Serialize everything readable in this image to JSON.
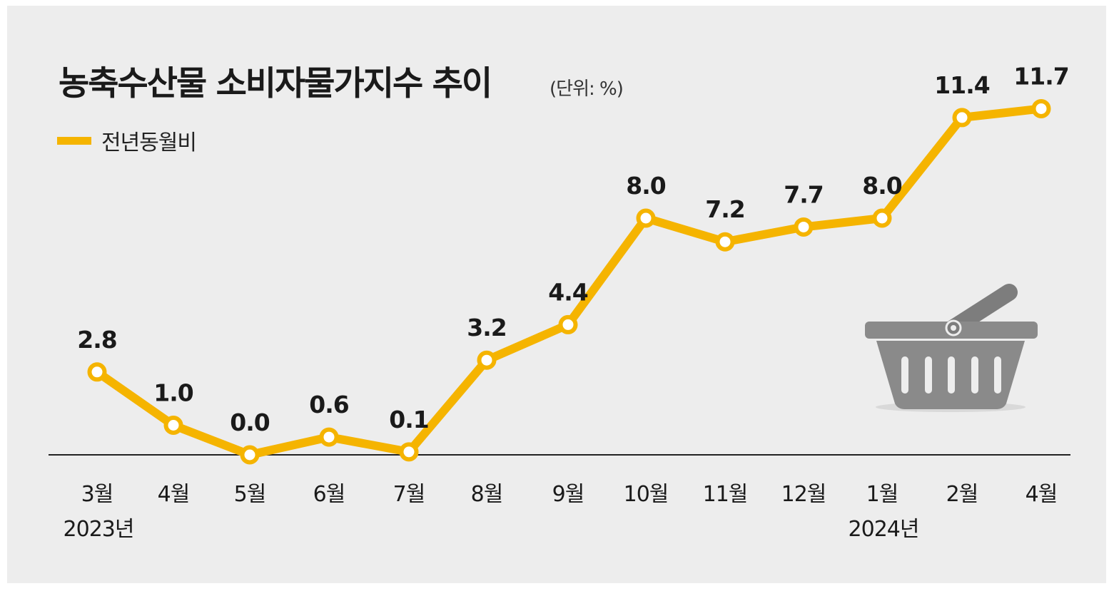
{
  "title": "농축수산물 소비자물가지수 추이",
  "unit": "(단위: %)",
  "colors": {
    "line": "#f5b400",
    "background": "#ededed",
    "basket": "#8a8a8a"
  },
  "icons": [
    "shopping-basket-icon"
  ],
  "chart_data": {
    "type": "line",
    "title": "농축수산물 소비자물가지수 추이",
    "unit": "(단위: %)",
    "categories": [
      "3월",
      "4월",
      "5월",
      "6월",
      "7월",
      "8월",
      "9월",
      "10월",
      "11월",
      "12월",
      "1월",
      "2월",
      "4월"
    ],
    "year_labels": [
      {
        "category_index": 0,
        "label": "2023년"
      },
      {
        "category_index": 10,
        "label": "2024년"
      }
    ],
    "series": [
      {
        "name": "전년동월비",
        "values": [
          2.8,
          1.0,
          0.0,
          0.6,
          0.1,
          3.2,
          4.4,
          8.0,
          7.2,
          7.7,
          8.0,
          11.4,
          11.7
        ]
      }
    ],
    "value_labels": [
      "2.8",
      "1.0",
      "0.0",
      "0.6",
      "0.1",
      "3.2",
      "4.4",
      "8.0",
      "7.2",
      "7.7",
      "8.0",
      "11.4",
      "11.7"
    ],
    "legend": "top-left",
    "grid": false,
    "ylim": [
      0,
      12
    ]
  }
}
